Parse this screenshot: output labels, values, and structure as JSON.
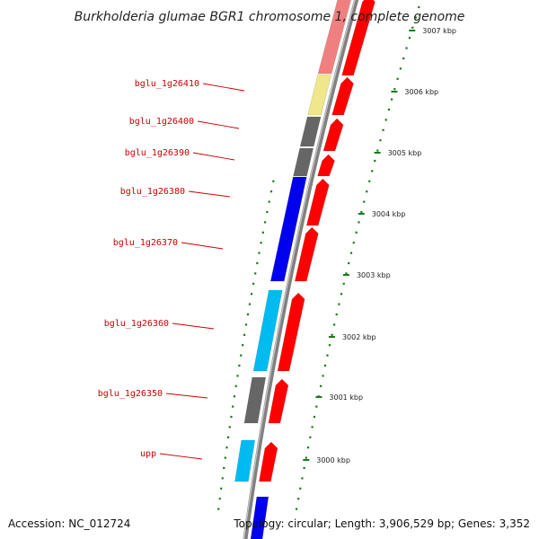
{
  "title": "Burkholderia glumae BGR1 chromosome 1, complete genome",
  "accession_text": "Accession: NC_012724",
  "summary_text": "Topology: circular; Length: 3,906,529 bp; Genes: 3,352",
  "colors": {
    "forward_cds": "#ff0000",
    "backbone": "#808080",
    "tick": "#1a7a1a",
    "label": "#cc0000",
    "gray_feature": "#666666",
    "blue_feature": "#0000ee",
    "cyan_feature": "#00bbf0",
    "yellow_feature": "#f0e68c",
    "pink_feature": "#f08080"
  },
  "scale_labels": [
    {
      "text": "3007 kbp",
      "kbp": 3007
    },
    {
      "text": "3006 kbp",
      "kbp": 3006
    },
    {
      "text": "3005 kbp",
      "kbp": 3005
    },
    {
      "text": "3004 kbp",
      "kbp": 3004
    },
    {
      "text": "3003 kbp",
      "kbp": 3003
    },
    {
      "text": "3002 kbp",
      "kbp": 3002
    },
    {
      "text": "3001 kbp",
      "kbp": 3001
    },
    {
      "text": "3000 kbp",
      "kbp": 3000
    }
  ],
  "genes": [
    {
      "name": "bglu_1g26410",
      "color": "yellow_feature"
    },
    {
      "name": "bglu_1g26400",
      "color": "gray_feature"
    },
    {
      "name": "bglu_1g26390",
      "color": "gray_feature"
    },
    {
      "name": "bglu_1g26380",
      "color": "blue_feature"
    },
    {
      "name": "bglu_1g26370",
      "color": "blue_feature"
    },
    {
      "name": "bglu_1g26360",
      "color": "cyan_feature"
    },
    {
      "name": "bglu_1g26350",
      "color": "gray_feature"
    },
    {
      "name": "upp",
      "color": "cyan_feature"
    }
  ]
}
